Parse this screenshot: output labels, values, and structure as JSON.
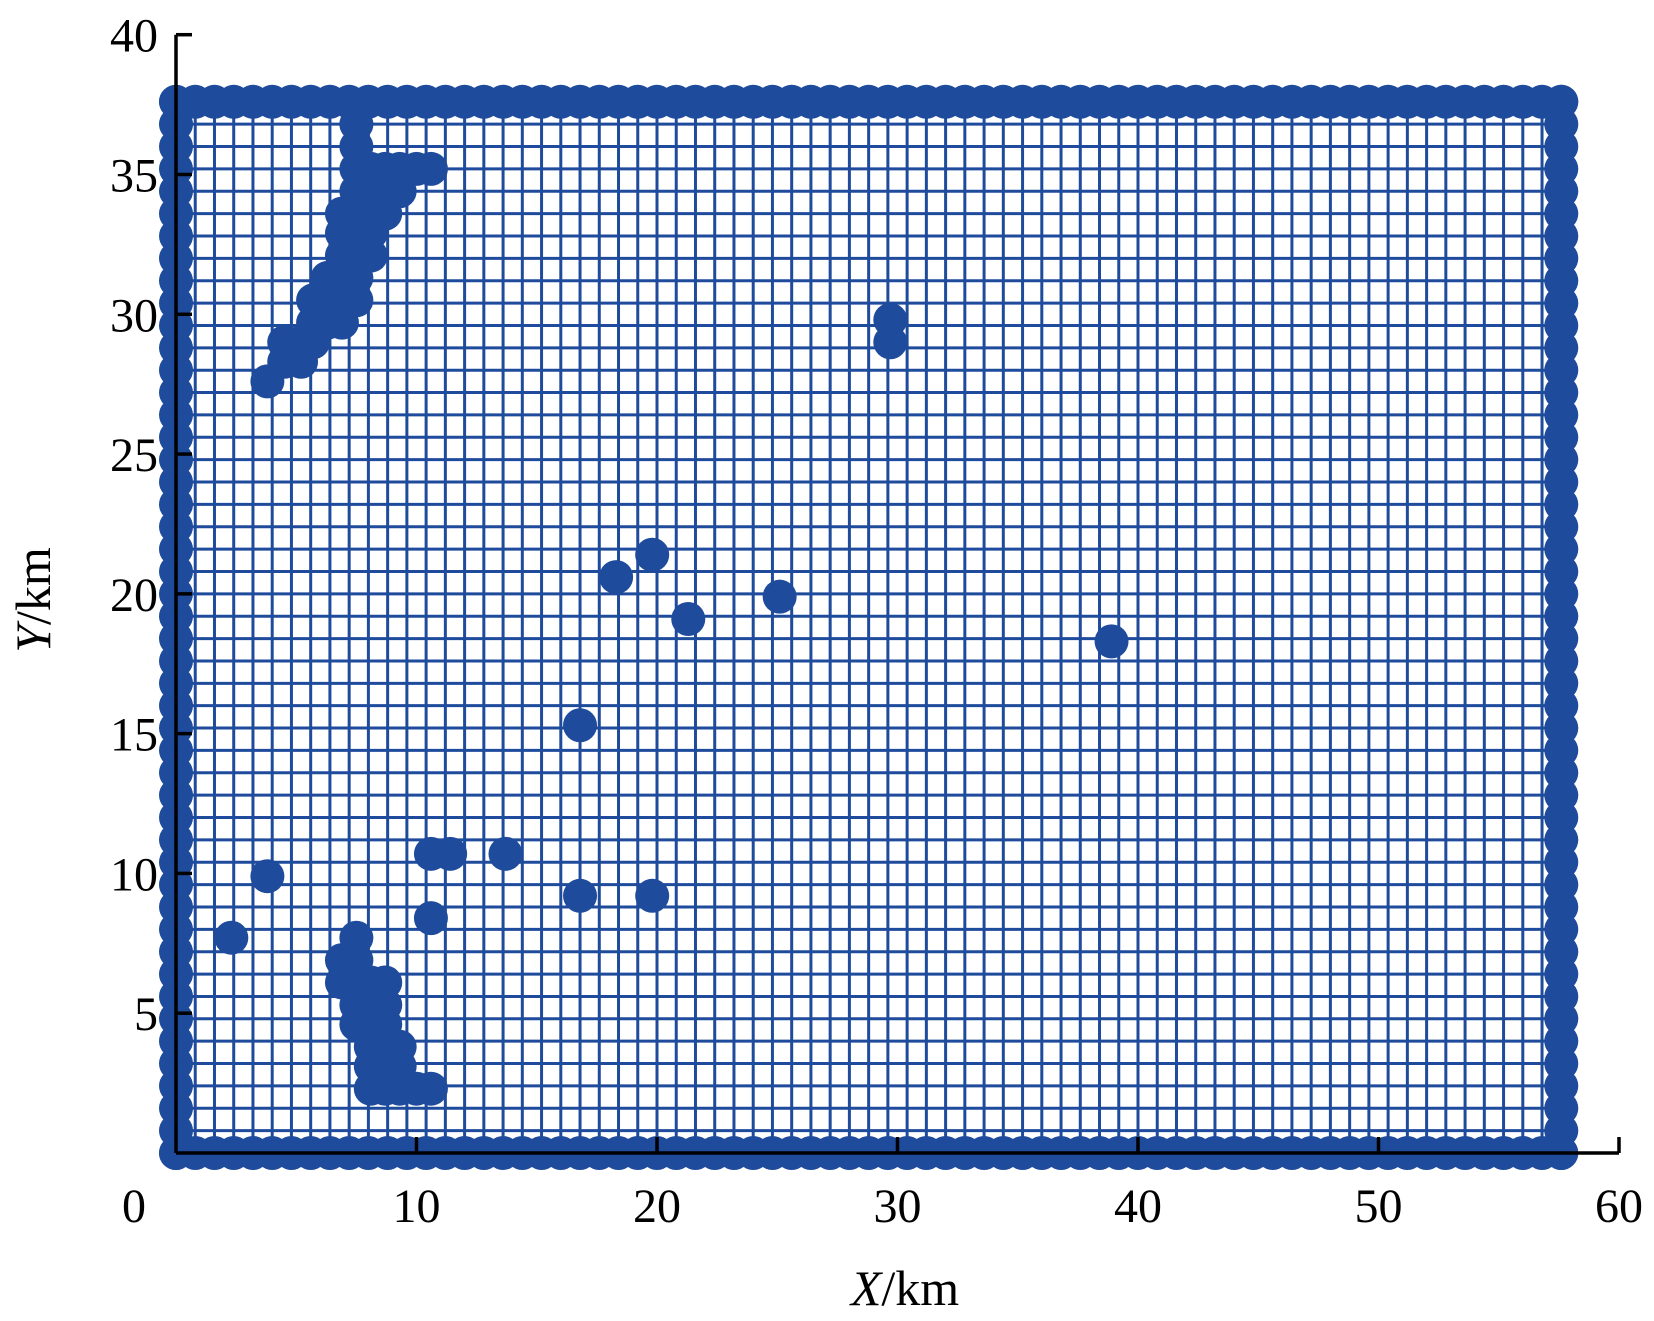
{
  "chart_data": {
    "type": "scatter",
    "title": "",
    "xlabel_var": "X",
    "xlabel_unit": "/km",
    "ylabel_var": "Y",
    "ylabel_unit": "/km",
    "xlim": [
      0,
      60
    ],
    "ylim": [
      0,
      40
    ],
    "x_ticks": [
      "0",
      "10",
      "20",
      "30",
      "40",
      "50",
      "60"
    ],
    "y_ticks": [
      "5",
      "10",
      "15",
      "20",
      "25",
      "30",
      "35",
      "40"
    ],
    "color": "#1f4b9c",
    "grid": true,
    "mesh": {
      "x_range": [
        0,
        57.6
      ],
      "y_range": [
        0,
        37.6
      ],
      "spacing": 0.8,
      "boundary_points": true
    },
    "points": [
      [
        3.8,
        27.6
      ],
      [
        4.5,
        28.3
      ],
      [
        4.5,
        29.0
      ],
      [
        5.2,
        28.3
      ],
      [
        5.2,
        29.0
      ],
      [
        5.7,
        29.0
      ],
      [
        5.7,
        29.7
      ],
      [
        5.7,
        30.5
      ],
      [
        6.3,
        29.7
      ],
      [
        6.3,
        30.5
      ],
      [
        6.3,
        31.3
      ],
      [
        6.9,
        29.7
      ],
      [
        6.9,
        30.5
      ],
      [
        6.9,
        31.3
      ],
      [
        6.9,
        32.1
      ],
      [
        6.9,
        32.9
      ],
      [
        6.9,
        33.6
      ],
      [
        7.5,
        30.5
      ],
      [
        7.5,
        31.3
      ],
      [
        7.5,
        32.1
      ],
      [
        7.5,
        32.9
      ],
      [
        7.5,
        33.6
      ],
      [
        7.5,
        34.4
      ],
      [
        7.5,
        35.2
      ],
      [
        7.5,
        36.0
      ],
      [
        7.5,
        36.8
      ],
      [
        8.1,
        32.1
      ],
      [
        8.1,
        32.9
      ],
      [
        8.1,
        33.6
      ],
      [
        8.1,
        34.4
      ],
      [
        8.1,
        35.2
      ],
      [
        8.7,
        33.6
      ],
      [
        8.7,
        34.4
      ],
      [
        8.7,
        35.2
      ],
      [
        9.3,
        34.4
      ],
      [
        9.3,
        35.2
      ],
      [
        10.0,
        35.2
      ],
      [
        10.6,
        35.2
      ],
      [
        29.7,
        29.8
      ],
      [
        29.7,
        29.0
      ],
      [
        18.3,
        20.6
      ],
      [
        19.8,
        21.4
      ],
      [
        21.3,
        19.1
      ],
      [
        25.1,
        19.9
      ],
      [
        38.9,
        18.3
      ],
      [
        16.8,
        15.3
      ],
      [
        10.6,
        10.7
      ],
      [
        11.4,
        10.7
      ],
      [
        13.7,
        10.7
      ],
      [
        3.8,
        9.9
      ],
      [
        16.8,
        9.2
      ],
      [
        19.8,
        9.2
      ],
      [
        10.6,
        8.4
      ],
      [
        2.3,
        7.7
      ],
      [
        7.5,
        7.7
      ],
      [
        6.9,
        6.9
      ],
      [
        6.9,
        6.1
      ],
      [
        7.5,
        6.9
      ],
      [
        7.5,
        6.1
      ],
      [
        7.5,
        5.3
      ],
      [
        7.5,
        4.6
      ],
      [
        8.1,
        6.1
      ],
      [
        8.1,
        5.3
      ],
      [
        8.1,
        4.6
      ],
      [
        8.1,
        3.8
      ],
      [
        8.1,
        3.1
      ],
      [
        8.1,
        2.3
      ],
      [
        8.7,
        6.1
      ],
      [
        8.7,
        5.3
      ],
      [
        8.7,
        4.6
      ],
      [
        8.7,
        3.8
      ],
      [
        8.7,
        3.1
      ],
      [
        8.7,
        2.3
      ],
      [
        9.3,
        3.8
      ],
      [
        9.3,
        3.1
      ],
      [
        9.3,
        2.3
      ],
      [
        10.0,
        2.3
      ],
      [
        10.6,
        2.3
      ]
    ]
  }
}
